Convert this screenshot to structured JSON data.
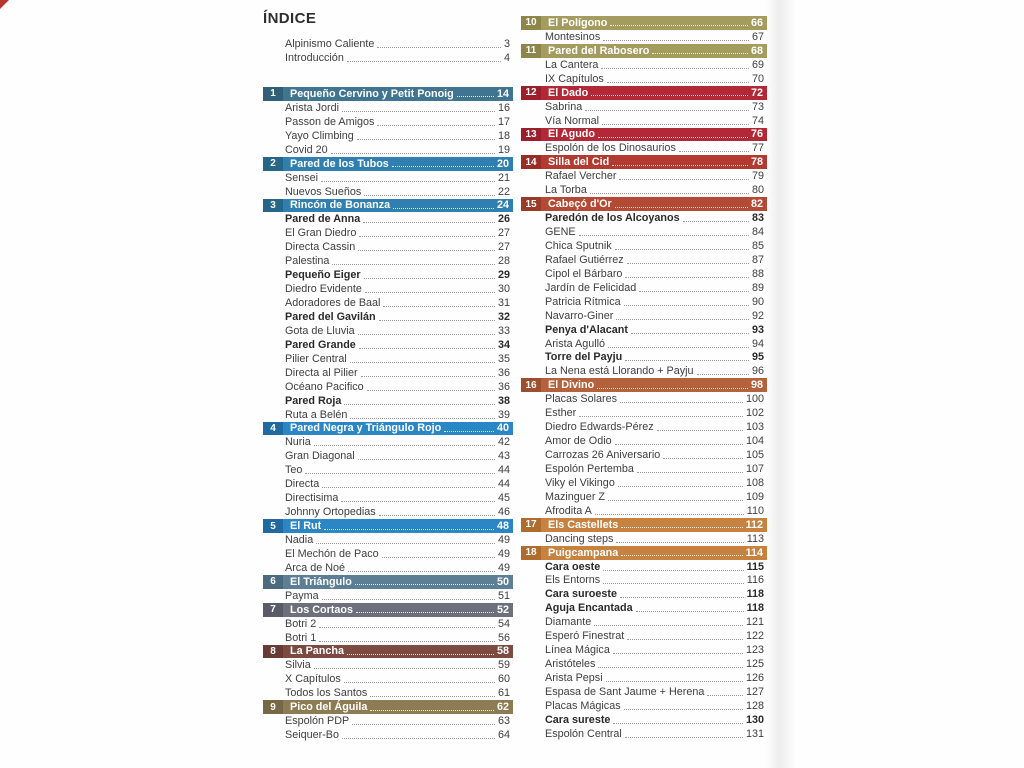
{
  "title": "ÍNDICE",
  "left_column": {
    "intro_items": [
      {
        "label": "Alpinismo Caliente",
        "page": 3
      },
      {
        "label": "Introducción",
        "page": 4
      }
    ],
    "sections": [
      {
        "num": 1,
        "title": "Pequeño Cervino y Petit Ponoig",
        "page": 14,
        "color": "#3f7590",
        "badge_color": "#305f77",
        "items": [
          {
            "label": "Arista Jordi",
            "page": 16
          },
          {
            "label": "Passon de Amigos",
            "page": 17
          },
          {
            "label": "Yayo Climbing",
            "page": 18
          },
          {
            "label": "Covid 20",
            "page": 19
          }
        ]
      },
      {
        "num": 2,
        "title": "Pared de los Tubos",
        "page": 20,
        "color": "#2f7fb0",
        "badge_color": "#266689",
        "items": [
          {
            "label": "Sensei",
            "page": 21
          },
          {
            "label": "Nuevos Sueños",
            "page": 22
          }
        ]
      },
      {
        "num": 3,
        "title": "Rincón de Bonanza",
        "page": 24,
        "color": "#2f7fb0",
        "badge_color": "#266689",
        "items": [
          {
            "label": "Pared de Anna",
            "page": 26,
            "bold": true
          },
          {
            "label": "El Gran Diedro",
            "page": 27
          },
          {
            "label": "Directa Cassin",
            "page": 27
          },
          {
            "label": "Palestina",
            "page": 28
          },
          {
            "label": "Pequeño Eiger",
            "page": 29,
            "bold": true
          },
          {
            "label": "Diedro Evidente",
            "page": 30
          },
          {
            "label": "Adoradores de Baal",
            "page": 31
          },
          {
            "label": "Pared del Gavilán",
            "page": 32,
            "bold": true
          },
          {
            "label": "Gota de Lluvia",
            "page": 33
          },
          {
            "label": "Pared Grande",
            "page": 34,
            "bold": true
          },
          {
            "label": "Pilier Central",
            "page": 35
          },
          {
            "label": "Directa al Pilier",
            "page": 36
          },
          {
            "label": "Océano Pacifico",
            "page": 36
          },
          {
            "label": "Pared Roja",
            "page": 38,
            "bold": true
          },
          {
            "label": "Ruta a Belén",
            "page": 39
          }
        ]
      },
      {
        "num": 4,
        "title": "Pared Negra y Triángulo Rojo",
        "page": 40,
        "color": "#2b86c6",
        "badge_color": "#2169a1",
        "items": [
          {
            "label": "Nuria",
            "page": 42
          },
          {
            "label": "Gran Diagonal",
            "page": 43
          },
          {
            "label": "Teo",
            "page": 44
          },
          {
            "label": "Directa",
            "page": 44
          },
          {
            "label": "Directisima",
            "page": 45
          },
          {
            "label": "Johnny Ortopedias",
            "page": 46
          }
        ]
      },
      {
        "num": 5,
        "title": "El Rut",
        "page": 48,
        "color": "#2b86c6",
        "badge_color": "#2169a1",
        "items": [
          {
            "label": "Nadia",
            "page": 49
          },
          {
            "label": "El Mechón de Paco",
            "page": 49
          },
          {
            "label": "Arca de Noé",
            "page": 49
          }
        ]
      },
      {
        "num": 6,
        "title": "El Triángulo",
        "page": 50,
        "color": "#5c7f96",
        "badge_color": "#4b6a80",
        "items": [
          {
            "label": "Payma",
            "page": 51
          }
        ]
      },
      {
        "num": 7,
        "title": "Los Cortaos",
        "page": 52,
        "color": "#6d6f7c",
        "badge_color": "#595b67",
        "items": [
          {
            "label": "Botri 2",
            "page": 54
          },
          {
            "label": "Botri 1",
            "page": 56
          }
        ]
      },
      {
        "num": 8,
        "title": "La Pancha",
        "page": 58,
        "color": "#7d4a42",
        "badge_color": "#673a33",
        "items": [
          {
            "label": "Silvia",
            "page": 59
          },
          {
            "label": "X Capítulos",
            "page": 60
          },
          {
            "label": "Todos los Santos",
            "page": 61
          }
        ]
      },
      {
        "num": 9,
        "title": "Pico del Águila",
        "page": 62,
        "color": "#8d7c53",
        "badge_color": "#766745",
        "items": [
          {
            "label": "Espolón PDP",
            "page": 63
          },
          {
            "label": "Seiquer-Bo",
            "page": 64
          }
        ]
      }
    ]
  },
  "right_column": {
    "sections": [
      {
        "num": 10,
        "title": "El Polígono",
        "page": 66,
        "color": "#a49c5e",
        "badge_color": "#8d854a",
        "items": [
          {
            "label": "Montesinos",
            "page": 67
          }
        ]
      },
      {
        "num": 11,
        "title": "Pared del Rabosero",
        "page": 68,
        "color": "#a49c5e",
        "badge_color": "#8d854a",
        "items": [
          {
            "label": "La Cantera",
            "page": 69
          },
          {
            "label": "IX Capítulos",
            "page": 70
          }
        ]
      },
      {
        "num": 12,
        "title": "El Dado",
        "page": 72,
        "color": "#b32836",
        "badge_color": "#9a1f2b",
        "items": [
          {
            "label": "Sabrina",
            "page": 73
          },
          {
            "label": "Vía Normal",
            "page": 74
          }
        ]
      },
      {
        "num": 13,
        "title": "El Agudo",
        "page": 76,
        "color": "#b32836",
        "badge_color": "#9a1f2b",
        "items": [
          {
            "label": "Espolón de los Dinosaurios",
            "page": 77
          }
        ]
      },
      {
        "num": 14,
        "title": "Silla del Cid",
        "page": 78,
        "color": "#b23a31",
        "badge_color": "#992c25",
        "items": [
          {
            "label": "Rafael Vercher",
            "page": 79
          },
          {
            "label": "La Torba",
            "page": 80
          }
        ]
      },
      {
        "num": 15,
        "title": "Cabeçó d'Or",
        "page": 82,
        "color": "#b34a35",
        "badge_color": "#9a3a28",
        "items": [
          {
            "label": "Paredón de los Alcoyanos",
            "page": 83,
            "bold": true
          },
          {
            "label": "GENE",
            "page": 84
          },
          {
            "label": "Chica Sputnik",
            "page": 85
          },
          {
            "label": "Rafael Gutiérrez",
            "page": 87
          },
          {
            "label": "Cipol el Bárbaro",
            "page": 88
          },
          {
            "label": "Jardín de Felicidad",
            "page": 89
          },
          {
            "label": "Patricia Rítmica",
            "page": 90
          },
          {
            "label": "Navarro-Giner",
            "page": 92
          },
          {
            "label": "Penya d'Alacant",
            "page": 93,
            "bold": true
          },
          {
            "label": "Arista Agulló",
            "page": 94
          },
          {
            "label": "Torre del Payju",
            "page": 95,
            "bold": true
          },
          {
            "label": "La Nena está Llorando + Payju",
            "page": 96
          }
        ]
      },
      {
        "num": 16,
        "title": "El Divino",
        "page": 98,
        "color": "#b4613c",
        "badge_color": "#9d4f2d",
        "items": [
          {
            "label": "Placas Solares",
            "page": 100
          },
          {
            "label": "Esther",
            "page": 102
          },
          {
            "label": "Diedro Edwards-Pérez",
            "page": 103
          },
          {
            "label": "Amor de Odio",
            "page": 104
          },
          {
            "label": "Carrozas 26 Aniversario",
            "page": 105
          },
          {
            "label": "Espolón Pertemba",
            "page": 107
          },
          {
            "label": "Viky el Vikingo",
            "page": 108
          },
          {
            "label": "Mazinguer Z",
            "page": 109
          },
          {
            "label": "Afrodita A",
            "page": 110
          }
        ]
      },
      {
        "num": 17,
        "title": "Els Castellets",
        "page": 112,
        "color": "#c8823f",
        "badge_color": "#b06c2f",
        "items": [
          {
            "label": "Dancing steps",
            "page": 113
          }
        ]
      },
      {
        "num": 18,
        "title": "Puigcampana",
        "page": 114,
        "color": "#c8823f",
        "badge_color": "#b06c2f",
        "items": [
          {
            "label": "Cara oeste",
            "page": 115,
            "bold": true
          },
          {
            "label": "Els Entorns",
            "page": 116
          },
          {
            "label": "Cara suroeste",
            "page": 118,
            "bold": true
          },
          {
            "label": "Aguja Encantada",
            "page": 118,
            "bold": true
          },
          {
            "label": "Diamante",
            "page": 121
          },
          {
            "label": "Esperó Finestrat",
            "page": 122
          },
          {
            "label": "Línea Mágica",
            "page": 123
          },
          {
            "label": "Aristóteles",
            "page": 125
          },
          {
            "label": "Arista Pepsi",
            "page": 126
          },
          {
            "label": "Espasa de Sant Jaume + Herena",
            "page": 127
          },
          {
            "label": "Placas Mágicas",
            "page": 128
          },
          {
            "label": "Cara sureste",
            "page": 130,
            "bold": true
          },
          {
            "label": "Espolón Central",
            "page": 131
          }
        ]
      }
    ]
  }
}
